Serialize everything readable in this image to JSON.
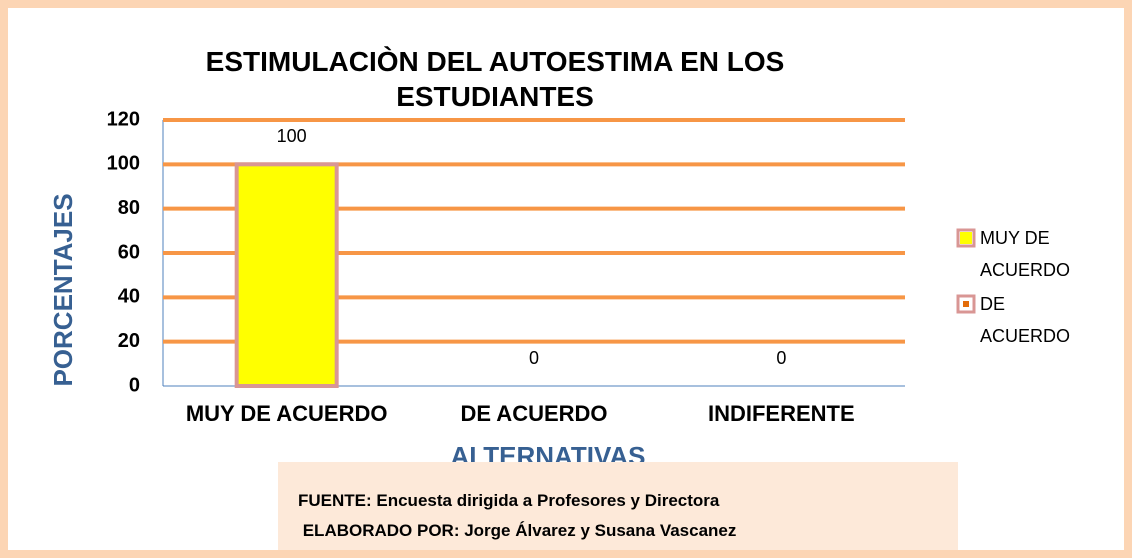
{
  "chart_data": {
    "type": "bar",
    "title": "ESTIMULACIÒN DEL AUTOESTIMA EN LOS ESTUDIANTES",
    "categories": [
      "MUY DE ACUERDO",
      "DE ACUERDO",
      "INDIFERENTE"
    ],
    "values": [
      100,
      0,
      0
    ],
    "color": "#ffff00",
    "edge_color": "#d99694",
    "ylim": [
      0,
      120
    ],
    "yticks": [
      0,
      20,
      40,
      60,
      80,
      100,
      120
    ],
    "grid": true,
    "grid_color": "#f79646",
    "y_label": "PORCENTAJES",
    "x_label": "ALTERNATIVAS",
    "legend_position": "right",
    "legend": [
      {
        "name": "MUY DE ACUERDO",
        "color": "#ffff00"
      },
      {
        "name": "DE ACUERDO",
        "color": "#e36c0a"
      }
    ]
  },
  "note": {
    "source": "FUENTE: Encuesta dirigida a Profesores y Directora",
    "author": " ELABORADO POR: Jorge Álvarez y Susana Vascanez"
  }
}
